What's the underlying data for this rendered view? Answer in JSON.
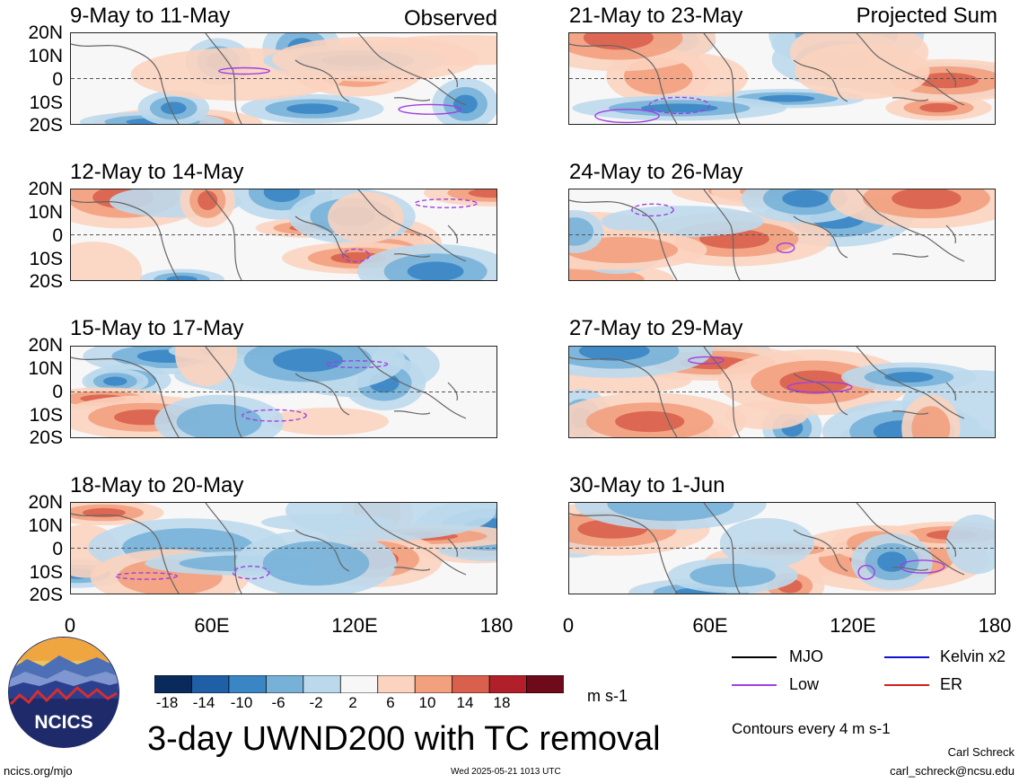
{
  "chart_data": {
    "type": "heatmap",
    "title": "3-day UWND200 with TC removal",
    "units": "m s-1",
    "contour_note": "Contours every 4 m s-1",
    "colorbar": {
      "labels": [
        "-18",
        "-14",
        "-10",
        "-6",
        "-2",
        "2",
        "6",
        "10",
        "14",
        "18"
      ],
      "colors": [
        "#0b2a5c",
        "#1f5fa6",
        "#3a86c4",
        "#78b1d8",
        "#bcd9ec",
        "#f7f7f7",
        "#fbd3bf",
        "#f2a07e",
        "#d9604c",
        "#b11f2a",
        "#6e0a1a"
      ]
    },
    "lat_labels": [
      "20N",
      "10N",
      "0",
      "10S",
      "20S"
    ],
    "lon_labels": [
      "0",
      "60E",
      "120E",
      "180"
    ],
    "left_header": "Observed",
    "right_header": "Projected Sum",
    "left_panels": [
      {
        "period": "9-May to 11-May"
      },
      {
        "period": "12-May to 14-May"
      },
      {
        "period": "15-May to 17-May"
      },
      {
        "period": "18-May to 20-May"
      }
    ],
    "right_panels": [
      {
        "period": "21-May to 23-May"
      },
      {
        "period": "24-May to 26-May"
      },
      {
        "period": "27-May to 29-May"
      },
      {
        "period": "30-May to 1-Jun"
      }
    ],
    "legend": [
      {
        "label": "MJO",
        "color": "#000000"
      },
      {
        "label": "Kelvin x2",
        "color": "#1010d0"
      },
      {
        "label": "Low",
        "color": "#a040e0"
      },
      {
        "label": "ER",
        "color": "#d02020"
      }
    ]
  },
  "logo": {
    "text": "NCICS"
  },
  "footer": {
    "url": "ncics.org/mjo",
    "timestamp": "Wed 2025-05-21 1013 UTC",
    "author": "Carl Schreck",
    "email": "carl_schreck@ncsu.edu"
  }
}
